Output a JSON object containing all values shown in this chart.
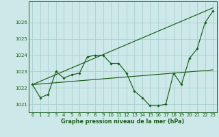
{
  "title": "Graphe pression niveau de la mer (hPa)",
  "background_color": "#cce8e8",
  "grid_color": "#aacfcf",
  "line_color": "#1a5c1a",
  "xlim": [
    -0.5,
    23.5
  ],
  "ylim": [
    1020.5,
    1027.3
  ],
  "yticks": [
    1021,
    1022,
    1023,
    1024,
    1025,
    1026
  ],
  "xticks": [
    0,
    1,
    2,
    3,
    4,
    5,
    6,
    7,
    8,
    9,
    10,
    11,
    12,
    13,
    14,
    15,
    16,
    17,
    18,
    19,
    20,
    21,
    22,
    23
  ],
  "main_x": [
    0,
    1,
    2,
    3,
    4,
    5,
    6,
    7,
    8,
    9,
    10,
    11,
    12,
    13,
    14,
    15,
    16,
    17,
    18,
    19,
    20,
    21,
    22,
    23
  ],
  "main_y": [
    1022.2,
    1021.4,
    1021.6,
    1023.0,
    1022.6,
    1022.8,
    1022.9,
    1023.9,
    1024.0,
    1024.0,
    1023.5,
    1023.5,
    1022.9,
    1021.8,
    1021.4,
    1020.9,
    1020.9,
    1021.0,
    1022.9,
    1022.2,
    1023.8,
    1024.4,
    1026.0,
    1026.7
  ],
  "upper_line_x": [
    0,
    23
  ],
  "upper_line_y": [
    1022.2,
    1026.9
  ],
  "lower_line_x": [
    0,
    23
  ],
  "lower_line_y": [
    1022.2,
    1023.1
  ],
  "xlabel_fontsize": 5.5,
  "ylabel_fontsize": 5.5,
  "title_fontsize": 5.8,
  "tick_fontsize": 5.0
}
